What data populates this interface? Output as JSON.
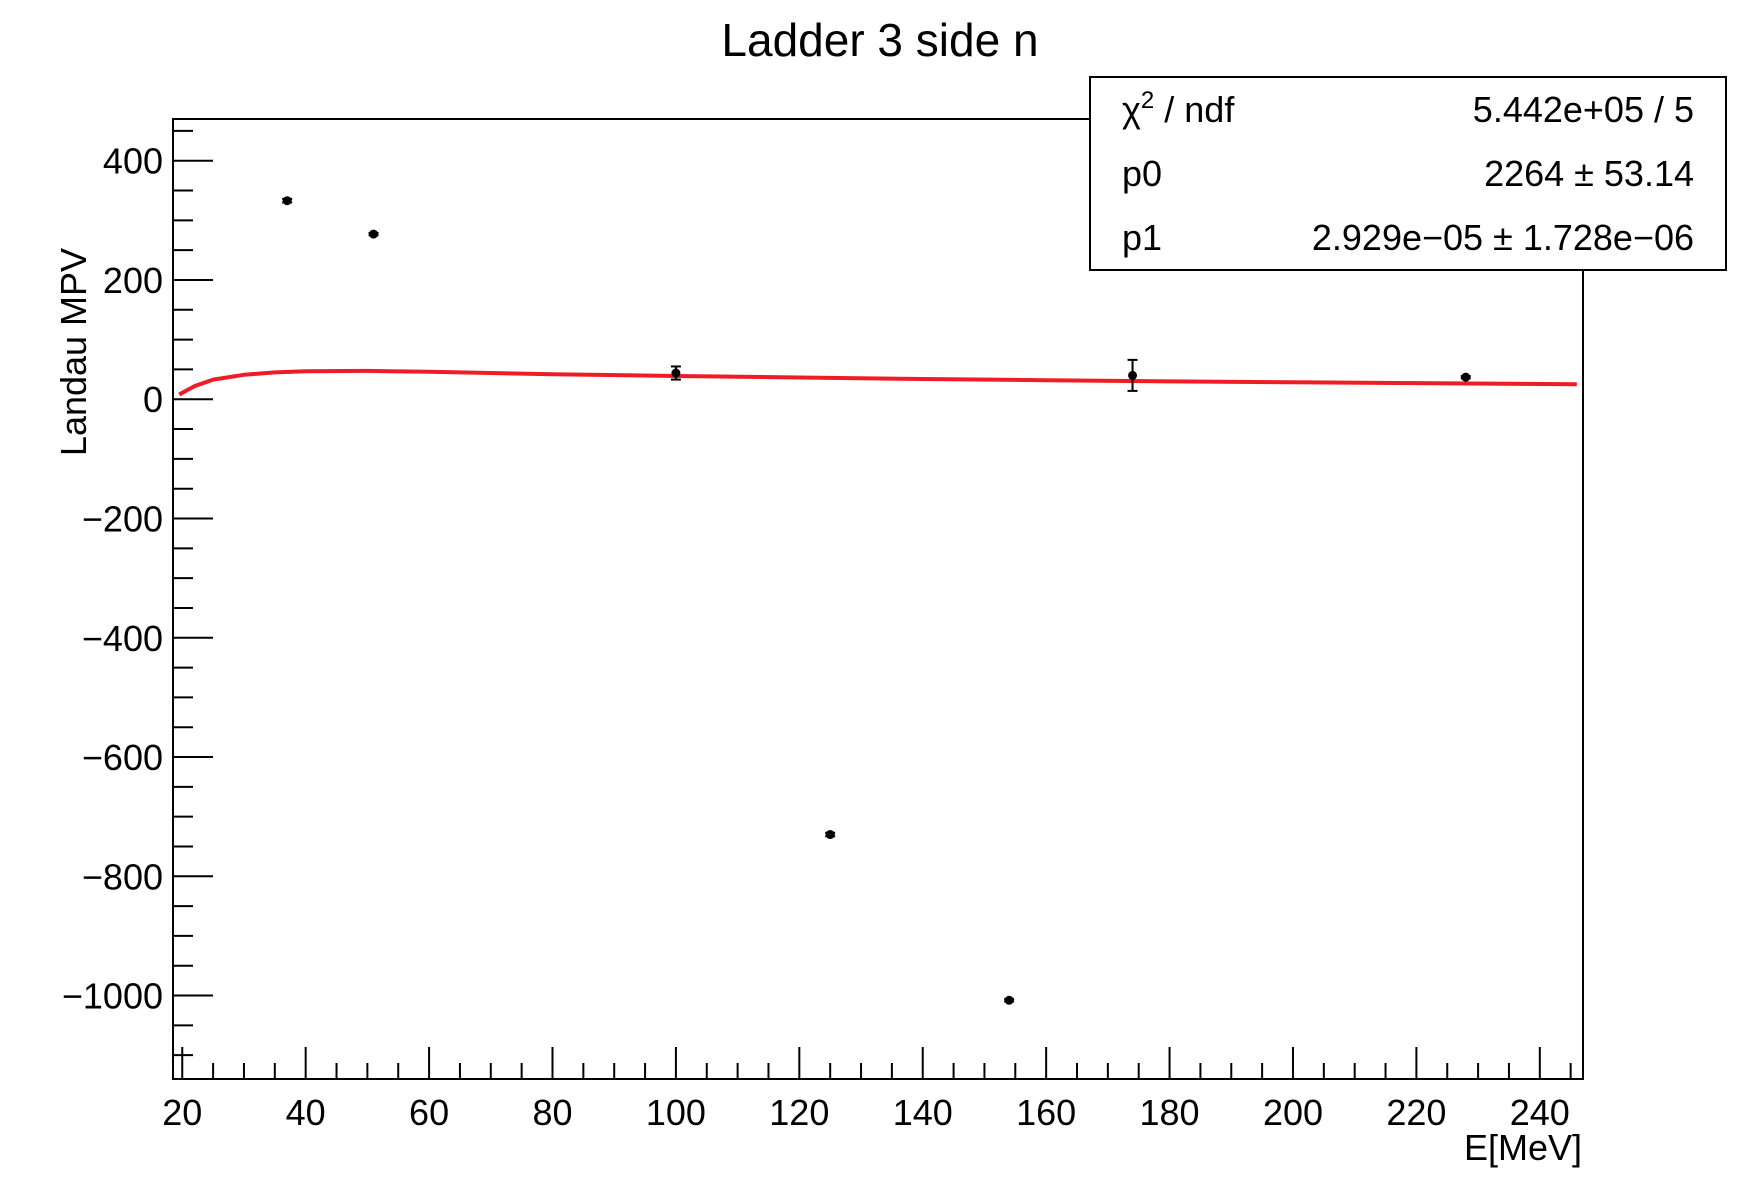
{
  "chart_data": {
    "type": "scatter",
    "title": "Ladder 3 side n",
    "xlabel": "E[MeV]",
    "ylabel": "Landau MPV",
    "xlim": [
      18.5,
      247
    ],
    "ylim": [
      -1140,
      470
    ],
    "x_ticks": [
      20,
      40,
      60,
      80,
      100,
      120,
      140,
      160,
      180,
      200,
      220,
      240
    ],
    "y_ticks": [
      400,
      200,
      0,
      -200,
      -400,
      -600,
      -800,
      -1000
    ],
    "x_tick_labels": [
      "20",
      "40",
      "60",
      "80",
      "100",
      "120",
      "140",
      "160",
      "180",
      "200",
      "220",
      "240"
    ],
    "y_tick_labels": [
      "400",
      "200",
      "0",
      "−200",
      "−400",
      "−600",
      "−800",
      "−1000"
    ],
    "grid": false,
    "points": [
      {
        "x": 37,
        "y": 333,
        "err": 3
      },
      {
        "x": 51,
        "y": 277,
        "err": 2
      },
      {
        "x": 100,
        "y": 44,
        "err": 11
      },
      {
        "x": 125,
        "y": -730,
        "err": 3
      },
      {
        "x": 154,
        "y": -1008,
        "err": 2
      },
      {
        "x": 174,
        "y": 40,
        "err": 26
      },
      {
        "x": 228,
        "y": 37,
        "err": 2
      }
    ],
    "fit": {
      "color": "#ee1c25",
      "x_range": [
        19.5,
        246
      ],
      "curve": [
        [
          19.5,
          8
        ],
        [
          22,
          22
        ],
        [
          25,
          33
        ],
        [
          30,
          41
        ],
        [
          35,
          45
        ],
        [
          40,
          47
        ],
        [
          50,
          47.5
        ],
        [
          60,
          46
        ],
        [
          80,
          42
        ],
        [
          100,
          39
        ],
        [
          120,
          36.5
        ],
        [
          140,
          34
        ],
        [
          160,
          32
        ],
        [
          180,
          30
        ],
        [
          200,
          28.5
        ],
        [
          220,
          27
        ],
        [
          246,
          25
        ]
      ]
    },
    "stats": {
      "rows": [
        {
          "label_main": "χ",
          "label_sup": "2",
          "label_rest": " / ndf",
          "value": "5.442e+05 / 5"
        },
        {
          "label_main": "p0",
          "label_sup": "",
          "label_rest": "",
          "value": "2264 ± 53.14"
        },
        {
          "label_main": "p1",
          "label_sup": "",
          "label_rest": "",
          "value": "2.929e−05 ± 1.728e−06"
        }
      ]
    }
  }
}
